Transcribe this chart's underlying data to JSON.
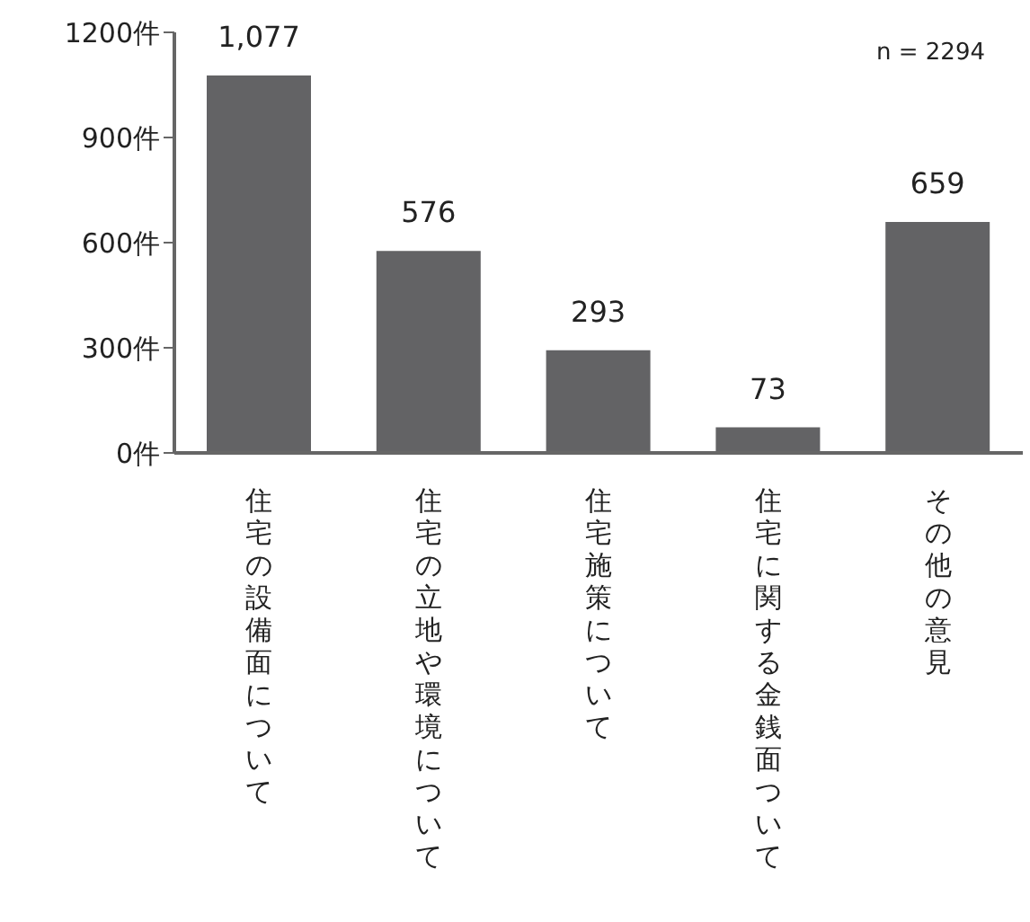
{
  "chart_data": {
    "type": "bar",
    "categories": [
      "住宅の設備面について",
      "住宅の立地や環境について",
      "住宅施策について",
      "住宅に関する金銭面ついて",
      "その他の意見"
    ],
    "values": [
      1077,
      576,
      293,
      73,
      659
    ],
    "value_labels": [
      "1,077",
      "576",
      "293",
      "73",
      "659"
    ],
    "color": "#636365",
    "ylim": [
      0,
      1200
    ],
    "yticks": [
      {
        "value": 0,
        "label": "0件"
      },
      {
        "value": 300,
        "label": "300件"
      },
      {
        "value": 600,
        "label": "600件"
      },
      {
        "value": 900,
        "label": "900件"
      },
      {
        "value": 1200,
        "label": "1200件"
      }
    ],
    "annotations": [
      "n = 2294"
    ],
    "grid": false,
    "legend": false
  }
}
